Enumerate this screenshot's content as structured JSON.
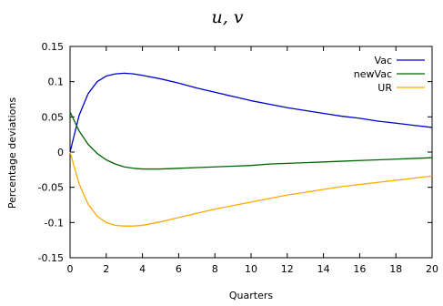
{
  "chart_data": {
    "type": "line",
    "title": "u, v",
    "xlabel": "Quarters",
    "ylabel": "Percentage deviations",
    "xlim": [
      0,
      20
    ],
    "ylim": [
      -0.15,
      0.15
    ],
    "x_ticks": [
      "0",
      "2",
      "4",
      "6",
      "8",
      "10",
      "12",
      "14",
      "16",
      "18",
      "20"
    ],
    "y_ticks": [
      "0.15",
      "0.1",
      "0.05",
      "0",
      "-0.05",
      "-0.1",
      "-0.15"
    ],
    "y_tick_values": [
      0.15,
      0.1,
      0.05,
      0,
      -0.05,
      -0.1,
      -0.15
    ],
    "grid": false,
    "legend_position": "top-right",
    "x": [
      0,
      0.5,
      1,
      1.5,
      2,
      2.5,
      3,
      3.5,
      4,
      5,
      6,
      7,
      8,
      9,
      10,
      11,
      12,
      13,
      14,
      15,
      16,
      17,
      18,
      19,
      20
    ],
    "series": [
      {
        "name": "Vac",
        "color": "#0000cc",
        "values": [
          0,
          0.052,
          0.083,
          0.1,
          0.108,
          0.111,
          0.112,
          0.111,
          0.109,
          0.104,
          0.098,
          0.091,
          0.085,
          0.079,
          0.073,
          0.068,
          0.063,
          0.059,
          0.055,
          0.051,
          0.048,
          0.044,
          0.041,
          0.038,
          0.035
        ]
      },
      {
        "name": "newVac",
        "color": "#006600",
        "values": [
          0.057,
          0.03,
          0.011,
          -0.002,
          -0.011,
          -0.017,
          -0.021,
          -0.023,
          -0.024,
          -0.024,
          -0.023,
          -0.022,
          -0.021,
          -0.02,
          -0.019,
          -0.017,
          -0.016,
          -0.015,
          -0.014,
          -0.013,
          -0.012,
          -0.011,
          -0.01,
          -0.009,
          -0.008
        ]
      },
      {
        "name": "UR",
        "color": "#ffaa00",
        "values": [
          0,
          -0.045,
          -0.074,
          -0.091,
          -0.1,
          -0.104,
          -0.105,
          -0.105,
          -0.104,
          -0.099,
          -0.093,
          -0.087,
          -0.081,
          -0.076,
          -0.071,
          -0.066,
          -0.061,
          -0.057,
          -0.053,
          -0.049,
          -0.046,
          -0.043,
          -0.04,
          -0.037,
          -0.034
        ]
      }
    ]
  }
}
